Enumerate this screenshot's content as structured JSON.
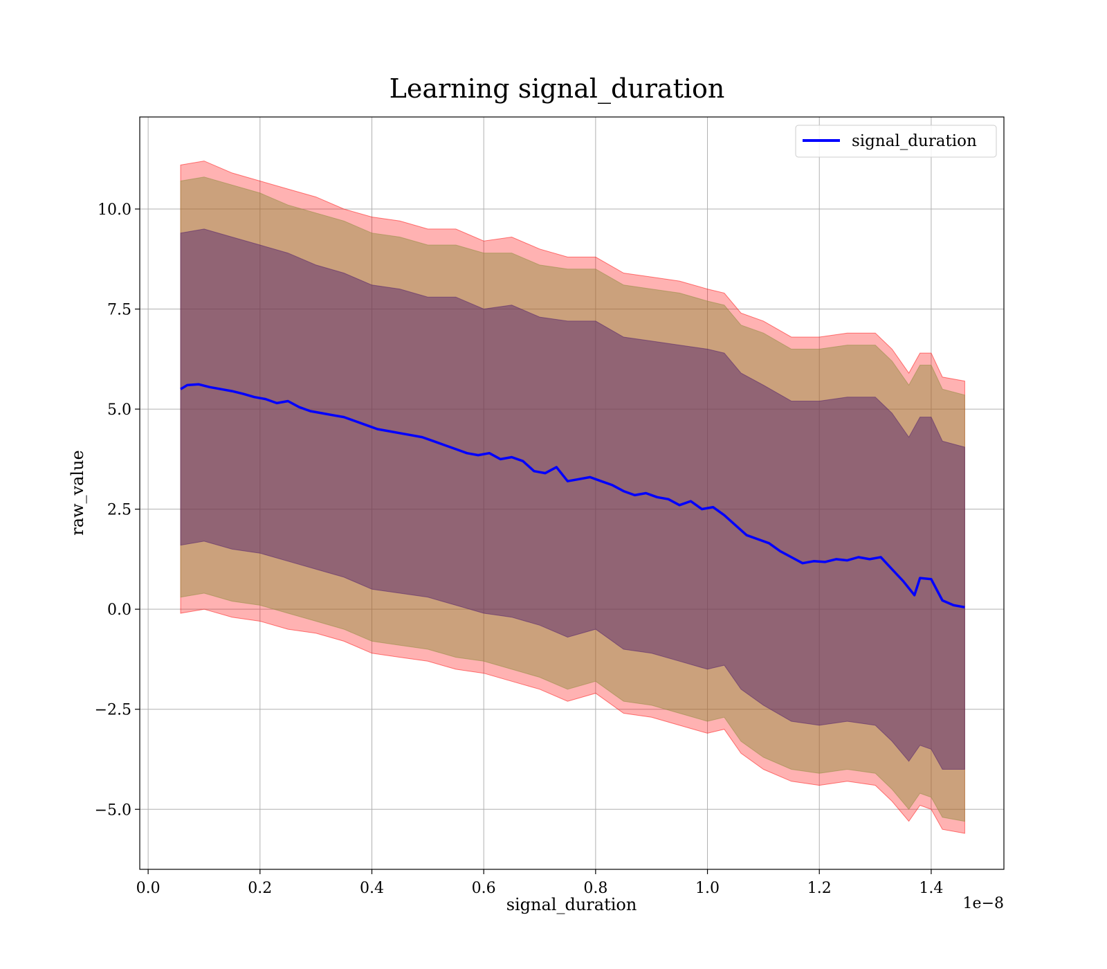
{
  "chart_data": {
    "type": "line",
    "title": "Learning signal_duration",
    "xlabel": "signal_duration",
    "ylabel": "raw_value",
    "x_offset_text": "1e−8",
    "xlim": [
      -0.015,
      1.53
    ],
    "ylim": [
      -6.5,
      12.3
    ],
    "x_ticks": [
      0.0,
      0.2,
      0.4,
      0.6,
      0.8,
      1.0,
      1.2,
      1.4
    ],
    "x_tick_labels": [
      "0.0",
      "0.2",
      "0.4",
      "0.6",
      "0.8",
      "1.0",
      "1.2",
      "1.4"
    ],
    "y_ticks": [
      -5.0,
      -2.5,
      0.0,
      2.5,
      5.0,
      7.5,
      10.0
    ],
    "y_tick_labels": [
      "−5.0",
      "−2.5",
      "0.0",
      "2.5",
      "5.0",
      "7.5",
      "10.0"
    ],
    "grid": true,
    "legend_position": "top-right",
    "colors": {
      "mean_line": "#0000ff",
      "band_outer": "#ff0000",
      "band_middle": "#8b8b3a",
      "band_inner": "#4b1a6b",
      "grid": "#b0b0b0"
    },
    "series": [
      {
        "name": "signal_duration",
        "x": [
          0.058,
          0.07,
          0.09,
          0.11,
          0.13,
          0.15,
          0.17,
          0.19,
          0.21,
          0.23,
          0.25,
          0.27,
          0.29,
          0.31,
          0.33,
          0.35,
          0.37,
          0.39,
          0.41,
          0.43,
          0.45,
          0.47,
          0.49,
          0.51,
          0.53,
          0.55,
          0.57,
          0.59,
          0.61,
          0.63,
          0.65,
          0.67,
          0.69,
          0.71,
          0.73,
          0.75,
          0.77,
          0.79,
          0.81,
          0.83,
          0.85,
          0.87,
          0.89,
          0.91,
          0.93,
          0.95,
          0.97,
          0.99,
          1.01,
          1.03,
          1.05,
          1.07,
          1.09,
          1.11,
          1.13,
          1.15,
          1.17,
          1.19,
          1.21,
          1.23,
          1.25,
          1.27,
          1.29,
          1.31,
          1.33,
          1.35,
          1.37,
          1.38,
          1.4,
          1.42,
          1.44,
          1.46
        ],
        "y": [
          5.5,
          5.6,
          5.62,
          5.55,
          5.5,
          5.45,
          5.38,
          5.3,
          5.25,
          5.15,
          5.2,
          5.05,
          4.95,
          4.9,
          4.85,
          4.8,
          4.7,
          4.6,
          4.5,
          4.45,
          4.4,
          4.35,
          4.3,
          4.2,
          4.1,
          4.0,
          3.9,
          3.85,
          3.9,
          3.75,
          3.8,
          3.7,
          3.45,
          3.4,
          3.55,
          3.2,
          3.25,
          3.3,
          3.2,
          3.1,
          2.95,
          2.85,
          2.9,
          2.8,
          2.75,
          2.6,
          2.7,
          2.5,
          2.55,
          2.35,
          2.1,
          1.85,
          1.75,
          1.65,
          1.45,
          1.3,
          1.15,
          1.2,
          1.18,
          1.25,
          1.22,
          1.3,
          1.25,
          1.3,
          1.0,
          0.7,
          0.35,
          0.78,
          0.75,
          0.22,
          0.1,
          0.05
        ]
      }
    ],
    "bands": [
      {
        "name": "outer",
        "x": [
          0.058,
          0.1,
          0.15,
          0.2,
          0.25,
          0.3,
          0.35,
          0.4,
          0.45,
          0.5,
          0.55,
          0.6,
          0.65,
          0.7,
          0.75,
          0.8,
          0.85,
          0.9,
          0.95,
          1.0,
          1.03,
          1.06,
          1.1,
          1.15,
          1.2,
          1.25,
          1.3,
          1.33,
          1.36,
          1.38,
          1.4,
          1.42,
          1.46
        ],
        "upper": [
          11.1,
          11.2,
          10.9,
          10.7,
          10.5,
          10.3,
          10.0,
          9.8,
          9.7,
          9.5,
          9.5,
          9.2,
          9.3,
          9.0,
          8.8,
          8.8,
          8.4,
          8.3,
          8.2,
          8.0,
          7.9,
          7.4,
          7.2,
          6.8,
          6.8,
          6.9,
          6.9,
          6.5,
          5.9,
          6.4,
          6.4,
          5.8,
          5.7
        ],
        "lower": [
          -0.1,
          0.0,
          -0.2,
          -0.3,
          -0.5,
          -0.6,
          -0.8,
          -1.1,
          -1.2,
          -1.3,
          -1.5,
          -1.6,
          -1.8,
          -2.0,
          -2.3,
          -2.1,
          -2.6,
          -2.7,
          -2.9,
          -3.1,
          -3.0,
          -3.6,
          -4.0,
          -4.3,
          -4.4,
          -4.3,
          -4.4,
          -4.8,
          -5.3,
          -4.9,
          -5.0,
          -5.5,
          -5.6
        ]
      },
      {
        "name": "middle",
        "x": [
          0.058,
          0.1,
          0.15,
          0.2,
          0.25,
          0.3,
          0.35,
          0.4,
          0.45,
          0.5,
          0.55,
          0.6,
          0.65,
          0.7,
          0.75,
          0.8,
          0.85,
          0.9,
          0.95,
          1.0,
          1.03,
          1.06,
          1.1,
          1.15,
          1.2,
          1.25,
          1.3,
          1.33,
          1.36,
          1.38,
          1.4,
          1.42,
          1.46
        ],
        "upper": [
          10.7,
          10.8,
          10.6,
          10.4,
          10.1,
          9.9,
          9.7,
          9.4,
          9.3,
          9.1,
          9.1,
          8.9,
          8.9,
          8.6,
          8.5,
          8.5,
          8.1,
          8.0,
          7.9,
          7.7,
          7.6,
          7.1,
          6.9,
          6.5,
          6.5,
          6.6,
          6.6,
          6.2,
          5.6,
          6.1,
          6.1,
          5.5,
          5.35
        ],
        "lower": [
          0.3,
          0.4,
          0.2,
          0.1,
          -0.1,
          -0.3,
          -0.5,
          -0.8,
          -0.9,
          -1.0,
          -1.2,
          -1.3,
          -1.5,
          -1.7,
          -2.0,
          -1.8,
          -2.3,
          -2.4,
          -2.6,
          -2.8,
          -2.7,
          -3.3,
          -3.7,
          -4.0,
          -4.1,
          -4.0,
          -4.1,
          -4.5,
          -5.0,
          -4.6,
          -4.7,
          -5.2,
          -5.3
        ]
      },
      {
        "name": "inner",
        "x": [
          0.058,
          0.1,
          0.15,
          0.2,
          0.25,
          0.3,
          0.35,
          0.4,
          0.45,
          0.5,
          0.55,
          0.6,
          0.65,
          0.7,
          0.75,
          0.8,
          0.85,
          0.9,
          0.95,
          1.0,
          1.03,
          1.06,
          1.1,
          1.15,
          1.2,
          1.25,
          1.3,
          1.33,
          1.36,
          1.38,
          1.4,
          1.42,
          1.46
        ],
        "upper": [
          9.4,
          9.5,
          9.3,
          9.1,
          8.9,
          8.6,
          8.4,
          8.1,
          8.0,
          7.8,
          7.8,
          7.5,
          7.6,
          7.3,
          7.2,
          7.2,
          6.8,
          6.7,
          6.6,
          6.5,
          6.4,
          5.9,
          5.6,
          5.2,
          5.2,
          5.3,
          5.3,
          4.9,
          4.3,
          4.8,
          4.8,
          4.2,
          4.05
        ],
        "lower": [
          1.6,
          1.7,
          1.5,
          1.4,
          1.2,
          1.0,
          0.8,
          0.5,
          0.4,
          0.3,
          0.1,
          -0.1,
          -0.2,
          -0.4,
          -0.7,
          -0.5,
          -1.0,
          -1.1,
          -1.3,
          -1.5,
          -1.4,
          -2.0,
          -2.4,
          -2.8,
          -2.9,
          -2.8,
          -2.9,
          -3.3,
          -3.8,
          -3.4,
          -3.5,
          -4.0,
          -4.0
        ]
      }
    ]
  }
}
